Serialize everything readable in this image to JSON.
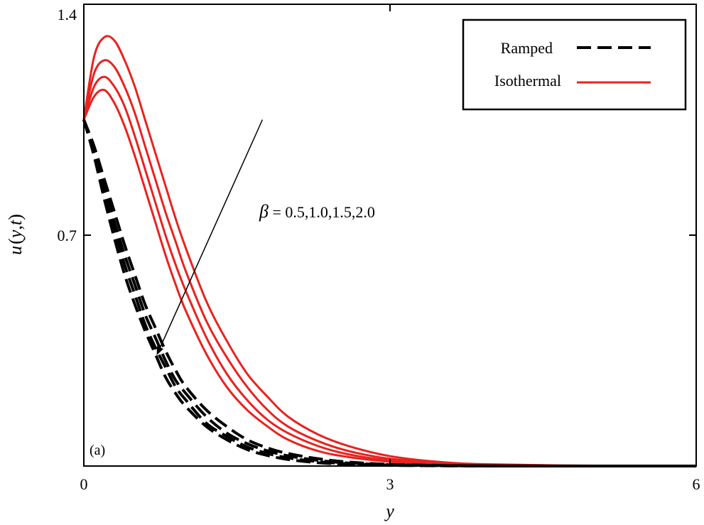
{
  "chart_data": {
    "type": "line",
    "panel_label": "(a)",
    "xlabel": "y",
    "ylabel": "u(y,t)",
    "ylabel_parts": {
      "func": "u",
      "open": "(",
      "var1": "y",
      "comma": ",",
      "var2": "t",
      "close": ")"
    },
    "xlim": [
      0,
      6
    ],
    "ylim": [
      0,
      1.4
    ],
    "xticks": [
      0,
      3,
      6
    ],
    "xtick_labels": [
      "0",
      "3",
      "6"
    ],
    "yticks": [
      0.7,
      1.4
    ],
    "ytick_labels": [
      "0.7",
      "1.4"
    ],
    "grid": false,
    "legend": {
      "position": "top-right",
      "entries": [
        {
          "label": "Ramped",
          "style": "dashed",
          "color": "#000000"
        },
        {
          "label": "Isothermal",
          "style": "solid",
          "color": "#e8231f"
        }
      ]
    },
    "annotation": {
      "symbol": "β",
      "text": " = 0.5,1.0,1.5,2.0",
      "arrow_from": [
        1.75,
        1.05
      ],
      "arrow_to": [
        0.72,
        0.34
      ]
    },
    "x": [
      0,
      0.1,
      0.2,
      0.3,
      0.4,
      0.5,
      0.6,
      0.7,
      0.8,
      0.9,
      1.0,
      1.2,
      1.4,
      1.6,
      1.8,
      2.0,
      2.3,
      2.6,
      3.0,
      3.5,
      4.0,
      5.0,
      6.0
    ],
    "series": [
      {
        "name": "Isothermal β=0.5",
        "group": "Isothermal",
        "style": "solid",
        "color": "#e8231f",
        "values": [
          1.05,
          1.24,
          1.3,
          1.29,
          1.23,
          1.15,
          1.05,
          0.95,
          0.85,
          0.75,
          0.66,
          0.5,
          0.38,
          0.28,
          0.21,
          0.15,
          0.095,
          0.06,
          0.03,
          0.012,
          0.005,
          0.001,
          0.0
        ]
      },
      {
        "name": "Isothermal β=1.0",
        "group": "Isothermal",
        "style": "solid",
        "color": "#e8231f",
        "values": [
          1.05,
          1.19,
          1.23,
          1.21,
          1.15,
          1.07,
          0.97,
          0.87,
          0.77,
          0.68,
          0.59,
          0.44,
          0.33,
          0.24,
          0.17,
          0.12,
          0.075,
          0.045,
          0.022,
          0.009,
          0.003,
          0.0005,
          0.0
        ]
      },
      {
        "name": "Isothermal β=1.5",
        "group": "Isothermal",
        "style": "solid",
        "color": "#e8231f",
        "values": [
          1.05,
          1.15,
          1.18,
          1.15,
          1.09,
          1.0,
          0.9,
          0.8,
          0.7,
          0.61,
          0.53,
          0.39,
          0.28,
          0.2,
          0.14,
          0.1,
          0.06,
          0.035,
          0.017,
          0.007,
          0.002,
          0.0003,
          0.0
        ]
      },
      {
        "name": "Isothermal β=2.0",
        "group": "Isothermal",
        "style": "solid",
        "color": "#e8231f",
        "values": [
          1.05,
          1.12,
          1.14,
          1.1,
          1.03,
          0.94,
          0.84,
          0.74,
          0.64,
          0.55,
          0.47,
          0.34,
          0.24,
          0.17,
          0.12,
          0.08,
          0.045,
          0.027,
          0.013,
          0.005,
          0.0015,
          0.0002,
          0.0
        ]
      },
      {
        "name": "Ramped β=0.5",
        "group": "Ramped",
        "style": "dashed",
        "color": "#000000",
        "values": [
          1.05,
          0.97,
          0.87,
          0.77,
          0.67,
          0.58,
          0.49,
          0.42,
          0.35,
          0.29,
          0.24,
          0.17,
          0.12,
          0.08,
          0.055,
          0.038,
          0.022,
          0.012,
          0.005,
          0.002,
          0.0005,
          0.0,
          0.0
        ]
      },
      {
        "name": "Ramped β=1.0",
        "group": "Ramped",
        "style": "dashed",
        "color": "#000000",
        "values": [
          1.05,
          0.96,
          0.85,
          0.74,
          0.64,
          0.55,
          0.46,
          0.39,
          0.32,
          0.26,
          0.22,
          0.15,
          0.1,
          0.068,
          0.046,
          0.031,
          0.017,
          0.009,
          0.004,
          0.0015,
          0.0004,
          0.0,
          0.0
        ]
      },
      {
        "name": "Ramped β=1.5",
        "group": "Ramped",
        "style": "dashed",
        "color": "#000000",
        "values": [
          1.05,
          0.95,
          0.83,
          0.72,
          0.61,
          0.52,
          0.43,
          0.36,
          0.3,
          0.24,
          0.2,
          0.13,
          0.09,
          0.058,
          0.038,
          0.025,
          0.013,
          0.007,
          0.003,
          0.001,
          0.0003,
          0.0,
          0.0
        ]
      },
      {
        "name": "Ramped β=2.0",
        "group": "Ramped",
        "style": "dashed",
        "color": "#000000",
        "values": [
          1.05,
          0.94,
          0.81,
          0.69,
          0.58,
          0.49,
          0.41,
          0.34,
          0.27,
          0.22,
          0.18,
          0.12,
          0.08,
          0.05,
          0.032,
          0.02,
          0.01,
          0.005,
          0.002,
          0.0008,
          0.0002,
          0.0,
          0.0
        ]
      }
    ]
  }
}
